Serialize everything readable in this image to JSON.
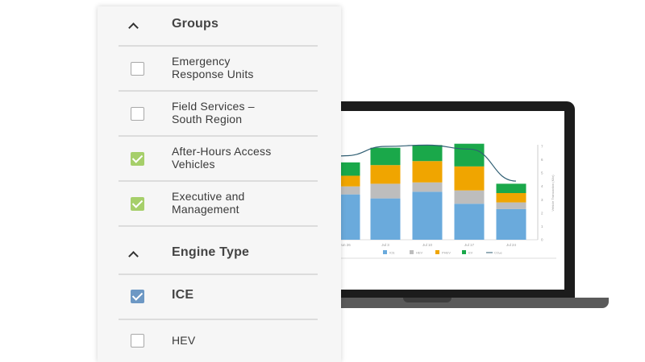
{
  "panel": {
    "groups_heading": "Groups",
    "groups": [
      {
        "line1": "Emergency",
        "line2": "Response Units",
        "checked": false
      },
      {
        "line1": "Field Services –",
        "line2": "South Region",
        "checked": false
      },
      {
        "line1": "After-Hours Access",
        "line2": "Vehicles",
        "checked": true
      },
      {
        "line1": "Executive and",
        "line2": "Management",
        "checked": true
      }
    ],
    "engine_heading": "Engine Type",
    "engines": [
      {
        "label": "ICE",
        "checked": true
      },
      {
        "label": "HEV",
        "checked": false
      }
    ]
  },
  "colors": {
    "ice": "#6aaadc",
    "hev": "#bdbdbd",
    "phev": "#f0a500",
    "ev": "#1aa84a",
    "co2": "#2f5e73",
    "check_green": "#a6cf6a",
    "check_blue": "#6d98c4"
  },
  "chart_data": {
    "type": "bar",
    "stacked": true,
    "categories": [
      "Jun 26",
      "Jul 3",
      "Jul 10",
      "Jul 17",
      "Jul 24"
    ],
    "series": [
      {
        "name": "ICE",
        "values": [
          3.4,
          3.1,
          3.6,
          2.7,
          2.3
        ]
      },
      {
        "name": "HEV",
        "values": [
          0.6,
          1.1,
          0.7,
          1.0,
          0.5
        ]
      },
      {
        "name": "PHEV",
        "values": [
          0.8,
          1.4,
          1.6,
          1.8,
          0.7
        ]
      },
      {
        "name": "EV",
        "values": [
          1.0,
          1.3,
          1.2,
          1.7,
          0.7
        ]
      }
    ],
    "line": {
      "name": "CO₂e",
      "values": [
        6.3,
        7.0,
        7.1,
        6.8,
        4.4
      ]
    },
    "yticks": [
      "0",
      "1",
      "2",
      "3",
      "4",
      "5",
      "6",
      "7"
    ],
    "ylabel": "Vehicle Transaction (Kilo)",
    "ylim": [
      0,
      7
    ]
  }
}
